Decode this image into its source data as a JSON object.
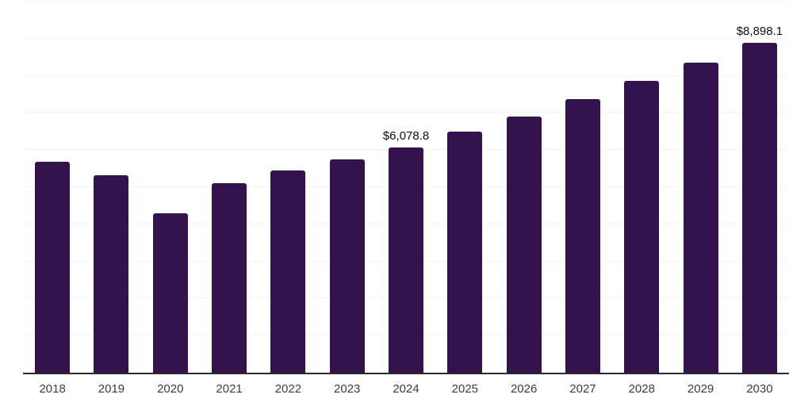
{
  "chart_data": {
    "type": "bar",
    "title": "",
    "xlabel": "",
    "ylabel": "",
    "categories": [
      "2018",
      "2019",
      "2020",
      "2021",
      "2022",
      "2023",
      "2024",
      "2025",
      "2026",
      "2027",
      "2028",
      "2029",
      "2030"
    ],
    "values": [
      5680,
      5330,
      4300,
      5110,
      5440,
      5750,
      6078.8,
      6500,
      6900,
      7370,
      7860,
      8360,
      8898.1
    ],
    "data_labels": {
      "2024": "$6,078.8",
      "2030": "$8,898.1"
    },
    "ylim": [
      0,
      10000
    ],
    "grid": true,
    "grid_divisions": 10,
    "legend": "none"
  },
  "colors": {
    "background": "#ffffff",
    "bar": "#33124d",
    "axis_line": "#2b2b2b",
    "gridline": "#f4f4f4",
    "tick_label": "#3c3c3c",
    "data_label": "#101010"
  }
}
